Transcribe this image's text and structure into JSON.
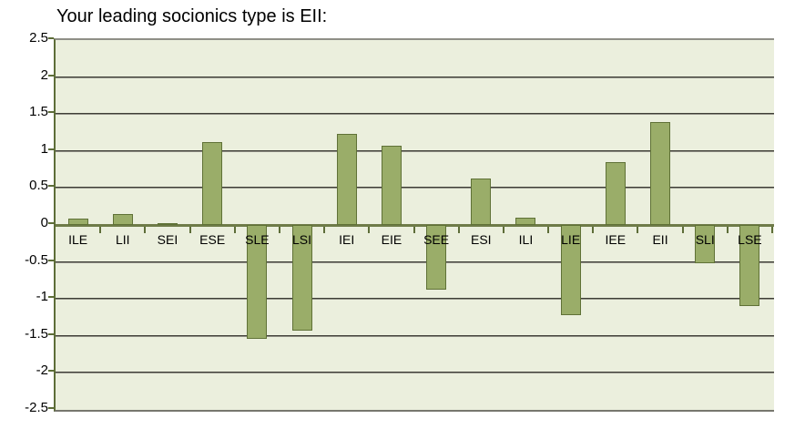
{
  "chart_data": {
    "type": "bar",
    "title": "Your leading socionics type is EII:",
    "leading_type": "EII",
    "categories": [
      "ILE",
      "LII",
      "SEI",
      "ESE",
      "SLE",
      "LSI",
      "IEI",
      "EIE",
      "SEE",
      "ESI",
      "ILI",
      "LIE",
      "IEE",
      "EII",
      "SLI",
      "LSE"
    ],
    "values": [
      0.09,
      0.15,
      0.02,
      1.12,
      -1.54,
      -1.43,
      1.23,
      1.07,
      -0.87,
      0.63,
      0.1,
      -1.22,
      0.85,
      1.39,
      -0.52,
      -1.1
    ],
    "xlabel": "",
    "ylabel": "",
    "ylim": [
      -2.5,
      2.5
    ],
    "ytick_step": 0.5,
    "grid": true,
    "legend_position": "none"
  },
  "colors": {
    "page_bg": "#ffffff",
    "plot_bg": "#ebefdd",
    "bar_fill": "#9aad69",
    "bar_border": "#5f7136",
    "axis_line": "#5d6d38",
    "zero_axis": "#6e7b48",
    "gridline_dark": "#3e3e36",
    "gridline_light": "#8f8f85",
    "top_border": "#8f8f87",
    "bottom_border": "#77776e",
    "text": "#000000"
  }
}
